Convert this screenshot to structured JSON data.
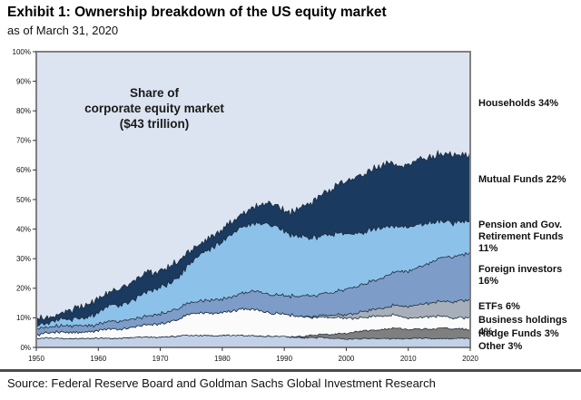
{
  "header": {
    "title": "Exhibit 1: Ownership breakdown of the US equity market",
    "subtitle": "as of March 31, 2020"
  },
  "source": "Source: Federal Reserve Board and Goldman Sachs Global Investment Research",
  "chart_data": {
    "type": "area",
    "stacked": true,
    "title": "",
    "annotation": "Share of\ncorporate equity market\n($43 trillion)",
    "xlabel": "",
    "ylabel": "",
    "x_range": [
      1950,
      2020
    ],
    "ylim": [
      0,
      100
    ],
    "grid": false,
    "legend_position": "right-outside",
    "x_ticks": [
      1950,
      1960,
      1970,
      1980,
      1990,
      2000,
      2010,
      2020
    ],
    "y_ticks": [
      0,
      10,
      20,
      30,
      40,
      50,
      60,
      70,
      80,
      90,
      100
    ],
    "y_tick_labels": [
      "0%",
      "10%",
      "20%",
      "30%",
      "40%",
      "50%",
      "60%",
      "70%",
      "80%",
      "90%",
      "100%"
    ],
    "colors": {
      "plot_background": "#dce4f1",
      "band_outline": "#1c2b3a",
      "frame": "#808080"
    },
    "series": [
      {
        "name": "Other",
        "label": "Other 3%",
        "share_2020": 3,
        "color": "#c2d1e8",
        "keypoints": [
          [
            1950,
            3
          ],
          [
            1960,
            3
          ],
          [
            1970,
            3.5
          ],
          [
            1975,
            4
          ],
          [
            1985,
            4
          ],
          [
            1990,
            3.5
          ],
          [
            2000,
            3
          ],
          [
            2020,
            3
          ]
        ]
      },
      {
        "name": "Hedge Funds",
        "label": "Hedge Funds 3%",
        "share_2020": 3,
        "color": "#7f7f7f",
        "keypoints": [
          [
            1950,
            0
          ],
          [
            1990,
            0
          ],
          [
            1992,
            0.3
          ],
          [
            1995,
            0.8
          ],
          [
            2000,
            2
          ],
          [
            2005,
            3
          ],
          [
            2008,
            3.5
          ],
          [
            2010,
            3
          ],
          [
            2015,
            3.5
          ],
          [
            2020,
            3
          ]
        ]
      },
      {
        "name": "Business holdings",
        "label": "Business holdings 4%",
        "share_2020": 4,
        "color": "#fbfbfb",
        "keypoints": [
          [
            1950,
            1.5
          ],
          [
            1960,
            2.5
          ],
          [
            1970,
            4.5
          ],
          [
            1975,
            7
          ],
          [
            1980,
            8
          ],
          [
            1985,
            9
          ],
          [
            1990,
            7.5
          ],
          [
            1995,
            6
          ],
          [
            2000,
            5
          ],
          [
            2005,
            4.5
          ],
          [
            2010,
            4
          ],
          [
            2020,
            4
          ]
        ]
      },
      {
        "name": "ETFs",
        "label": "ETFs 6%",
        "share_2020": 6,
        "color": "#a6afba",
        "keypoints": [
          [
            1950,
            0
          ],
          [
            1992,
            0
          ],
          [
            1995,
            0.4
          ],
          [
            2000,
            1.2
          ],
          [
            2005,
            2.5
          ],
          [
            2010,
            4
          ],
          [
            2015,
            5
          ],
          [
            2020,
            6
          ]
        ]
      },
      {
        "name": "Foreign investors",
        "label": "Foreign investors 16%",
        "share_2020": 16,
        "color": "#7d9cc8",
        "keypoints": [
          [
            1950,
            2
          ],
          [
            1960,
            2.2
          ],
          [
            1970,
            3.2
          ],
          [
            1980,
            4.5
          ],
          [
            1985,
            6
          ],
          [
            1990,
            6.5
          ],
          [
            1995,
            7
          ],
          [
            2000,
            8.5
          ],
          [
            2005,
            10
          ],
          [
            2010,
            12
          ],
          [
            2015,
            14.5
          ],
          [
            2020,
            16
          ]
        ]
      },
      {
        "name": "Pension and Gov. Retirement Funds",
        "label": "Pension and Gov.\nRetirement Funds 11%",
        "share_2020": 11,
        "color": "#8cc1e9",
        "keypoints": [
          [
            1950,
            1
          ],
          [
            1955,
            2
          ],
          [
            1960,
            4
          ],
          [
            1965,
            6.5
          ],
          [
            1970,
            9
          ],
          [
            1974,
            11.5
          ],
          [
            1976,
            14.5
          ],
          [
            1980,
            20
          ],
          [
            1985,
            23
          ],
          [
            1988,
            24
          ],
          [
            1991,
            20.5
          ],
          [
            1995,
            20
          ],
          [
            2000,
            19
          ],
          [
            2005,
            17
          ],
          [
            2010,
            15
          ],
          [
            2015,
            12.5
          ],
          [
            2020,
            11
          ]
        ]
      },
      {
        "name": "Mutual Funds",
        "label": "Mutual Funds 22%",
        "share_2020": 22,
        "color": "#1b3a60",
        "keypoints": [
          [
            1950,
            2
          ],
          [
            1953,
            1.5
          ],
          [
            1955,
            3
          ],
          [
            1960,
            4.5
          ],
          [
            1965,
            6
          ],
          [
            1968,
            6.5
          ],
          [
            1970,
            6
          ],
          [
            1974,
            4.5
          ],
          [
            1980,
            3.5
          ],
          [
            1984,
            5
          ],
          [
            1988,
            7
          ],
          [
            1990,
            7
          ],
          [
            1994,
            11
          ],
          [
            1998,
            16
          ],
          [
            2000,
            18
          ],
          [
            2004,
            20
          ],
          [
            2007,
            22
          ],
          [
            2009,
            20
          ],
          [
            2012,
            22
          ],
          [
            2016,
            23
          ],
          [
            2020,
            22
          ]
        ]
      },
      {
        "name": "Households",
        "label": "Households 34%",
        "share_2020": 34,
        "color": "#dce4f1",
        "keypoints": null,
        "note": "remainder to 100%"
      }
    ]
  }
}
